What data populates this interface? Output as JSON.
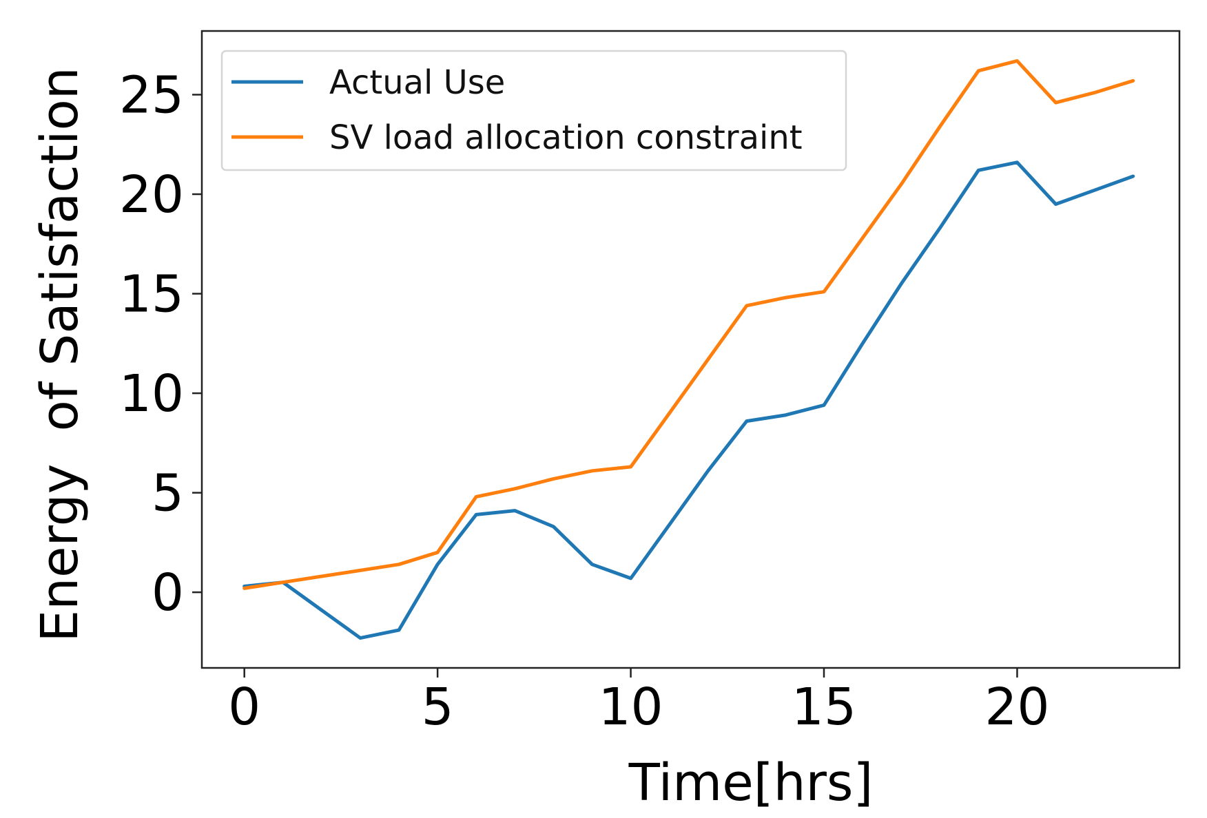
{
  "chart_data": {
    "type": "line",
    "title": "",
    "xlabel": "Time[hrs]",
    "ylabel": "Energy  of Satisfaction",
    "xlim": [
      -1.1,
      24.2
    ],
    "ylim": [
      -3.8,
      28.2
    ],
    "xticks": [
      0,
      5,
      10,
      15,
      20
    ],
    "yticks": [
      0,
      5,
      10,
      15,
      20,
      25
    ],
    "grid": false,
    "legend_position": "top-left",
    "x": [
      0,
      1,
      2,
      3,
      4,
      5,
      6,
      7,
      8,
      9,
      10,
      11,
      12,
      13,
      14,
      15,
      16,
      17,
      18,
      19,
      20,
      21,
      22,
      23
    ],
    "series": [
      {
        "name": "Actual Use",
        "color": "#1f77b4",
        "values": [
          0.3,
          0.5,
          -0.9,
          -2.3,
          -1.9,
          1.4,
          3.9,
          4.1,
          3.3,
          1.4,
          0.7,
          3.4,
          6.1,
          8.6,
          8.9,
          9.4,
          12.5,
          15.5,
          18.3,
          21.2,
          21.6,
          19.5,
          20.2,
          20.9
        ]
      },
      {
        "name": "SV load allocation constraint",
        "color": "#ff7f0e",
        "values": [
          0.2,
          0.5,
          0.8,
          1.1,
          1.4,
          2.0,
          4.8,
          5.2,
          5.7,
          6.1,
          6.3,
          9.0,
          11.7,
          14.4,
          14.8,
          15.1,
          17.8,
          20.5,
          23.4,
          26.2,
          26.7,
          24.6,
          25.1,
          25.7
        ]
      }
    ]
  }
}
